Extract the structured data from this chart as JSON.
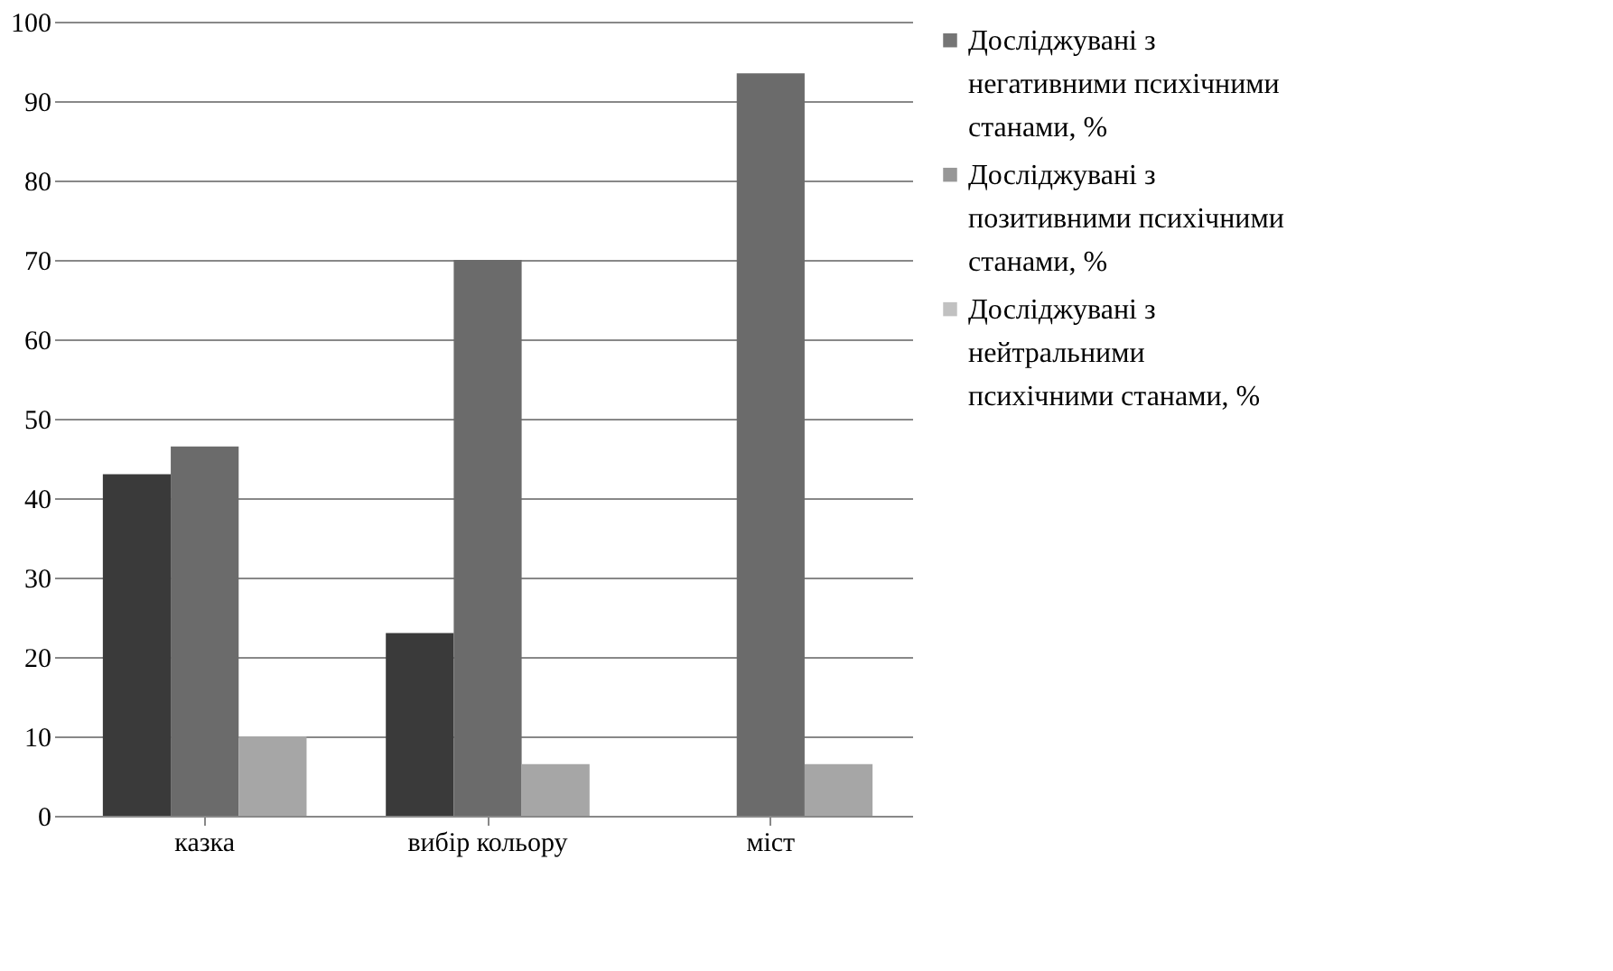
{
  "chart_data": {
    "type": "bar",
    "categories": [
      "казка",
      "вибір кольору",
      "міст"
    ],
    "series": [
      {
        "name": "Досліджувані з негативними психічними станами, %",
        "color": "#3a3a3a",
        "values": [
          43,
          23,
          0
        ]
      },
      {
        "name": "Досліджувані з позитивними психічними станами, %",
        "color": "#6b6b6b",
        "values": [
          46.5,
          70,
          93.5
        ]
      },
      {
        "name": "Досліджувані з нейтральними психічними станами, %",
        "color": "#a6a6a6",
        "values": [
          10,
          6.5,
          6.5
        ]
      }
    ],
    "ylim": [
      0,
      100
    ],
    "yticks": [
      0,
      10,
      20,
      30,
      40,
      50,
      60,
      70,
      80,
      90,
      100
    ],
    "grid": "y",
    "legend": "right"
  }
}
